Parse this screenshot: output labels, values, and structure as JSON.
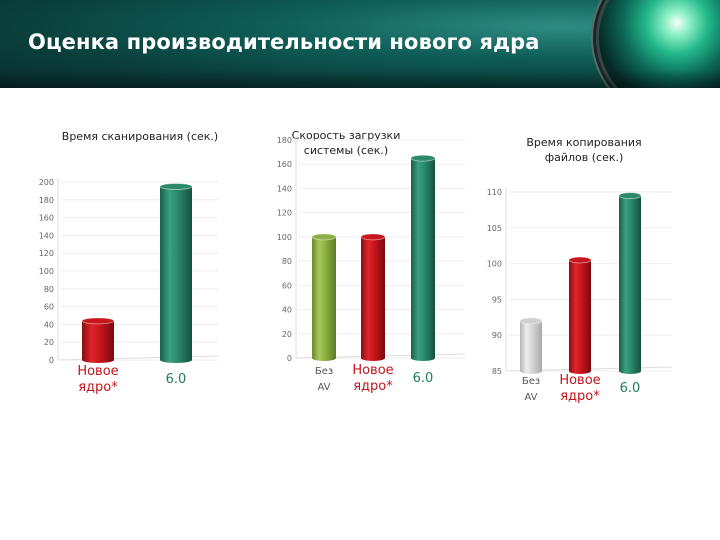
{
  "slide": {
    "title": "Оценка производительности нового ядра"
  },
  "colors": {
    "red": "#c8161d",
    "green": "#2a8a6a",
    "olive": "#8cb043",
    "gray": "#cfcfcf",
    "label_red": "#c0151c",
    "label_green": "#1f7a5d"
  },
  "chart_data": [
    {
      "type": "bar",
      "title_lines": [
        "Время сканирования (сек.)"
      ],
      "ylim": [
        0,
        200
      ],
      "ticks": [
        0,
        20,
        40,
        60,
        80,
        100,
        120,
        140,
        160,
        180,
        200
      ],
      "categories": [
        {
          "lines": [
            "Новое",
            "ядро*"
          ],
          "value": 44,
          "color": "red"
        },
        {
          "lines": [
            "6.0"
          ],
          "value": 195,
          "color": "green"
        }
      ]
    },
    {
      "type": "bar",
      "title_lines": [
        "Скорость загрузки",
        "системы (сек.)"
      ],
      "ylim": [
        0,
        180
      ],
      "ticks": [
        0,
        20,
        40,
        60,
        80,
        100,
        120,
        140,
        160,
        180
      ],
      "categories": [
        {
          "lines": [
            "Без",
            "AV"
          ],
          "value": 100,
          "color": "olive"
        },
        {
          "lines": [
            "Новое",
            "ядро*"
          ],
          "value": 100,
          "color": "red"
        },
        {
          "lines": [
            "6.0"
          ],
          "value": 165,
          "color": "green"
        }
      ]
    },
    {
      "type": "bar",
      "title_lines": [
        "Время копирования",
        "файлов (сек.)"
      ],
      "ylim": [
        85,
        110
      ],
      "ticks": [
        85,
        90,
        95,
        100,
        105,
        110
      ],
      "categories": [
        {
          "lines": [
            "Без",
            "AV"
          ],
          "value": 92,
          "color": "gray"
        },
        {
          "lines": [
            "Новое",
            "ядро*"
          ],
          "value": 100.5,
          "color": "red"
        },
        {
          "lines": [
            "6.0"
          ],
          "value": 109.5,
          "color": "green"
        }
      ]
    }
  ]
}
